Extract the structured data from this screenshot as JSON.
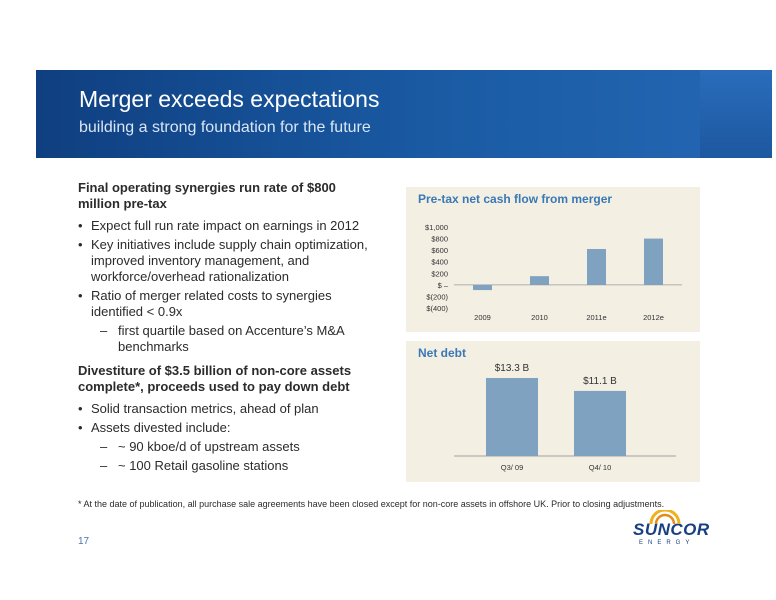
{
  "header": {
    "title": "Merger exceeds expectations",
    "subtitle": "building a strong foundation for the future"
  },
  "section1": {
    "heading": "Final operating synergies run rate of $800 million pre-tax",
    "bullets": [
      "Expect full run rate impact on earnings in 2012",
      "Key initiatives include supply chain optimization, improved inventory management, and workforce/overhead rationalization",
      "Ratio of merger related costs to synergies identified < 0.9x"
    ],
    "sub_bullets": [
      "first quartile based on Accenture’s M&A benchmarks"
    ]
  },
  "section2": {
    "heading": "Divestiture of $3.5 billion of non-core assets complete*, proceeds used to pay down debt",
    "bullets": [
      "Solid transaction metrics, ahead of plan",
      "Assets divested include:"
    ],
    "sub_bullets": [
      "~ 90 kboe/d of upstream assets",
      "~ 100 Retail gasoline stations"
    ]
  },
  "chart_data": [
    {
      "type": "bar",
      "title": "Pre-tax net cash flow from merger",
      "categories": [
        "2009",
        "2010",
        "2011e",
        "2012e"
      ],
      "values": [
        -90,
        150,
        620,
        800
      ],
      "ylim": [
        -400,
        1000
      ],
      "yticks": [
        1000,
        800,
        600,
        400,
        200,
        0,
        -200,
        -400
      ],
      "ytick_labels": [
        "$1,000",
        "$800",
        "$600",
        "$400",
        "$200",
        "$ –",
        "$(200)",
        "$(400)"
      ],
      "bar_color": "#7ea2bf",
      "grid": false
    },
    {
      "type": "bar",
      "title": "Net debt",
      "categories": [
        "Q3/ 09",
        "Q4/ 10"
      ],
      "values": [
        13.3,
        11.1
      ],
      "data_labels": [
        "$13.3 B",
        "$11.1 B"
      ],
      "bar_color": "#7ea2bf",
      "grid": false
    }
  ],
  "footnote": "* At the date of publication, all purchase sale agreements have been closed except for non-core assets in offshore UK. Prior to closing adjustments.",
  "page_number": "17",
  "logo": {
    "name": "SUNCOR",
    "tagline": "ENERGY",
    "icon": "sun-logo-icon"
  }
}
